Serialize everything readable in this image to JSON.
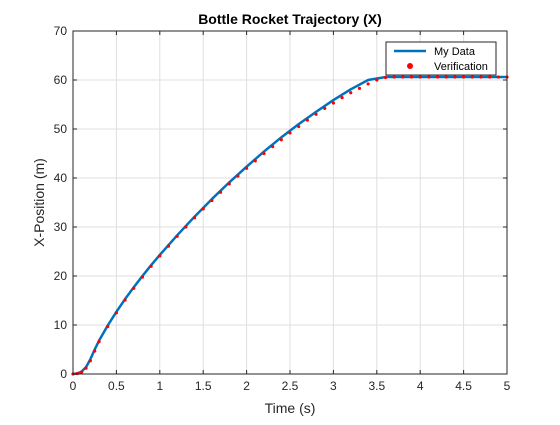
{
  "chart_data": {
    "type": "line",
    "title": "Bottle Rocket Trajectory (X)",
    "xlabel": "Time (s)",
    "ylabel": "X-Position (m)",
    "xlim": [
      0,
      5
    ],
    "ylim": [
      0,
      70
    ],
    "xticks": [
      0,
      0.5,
      1,
      1.5,
      2,
      2.5,
      3,
      3.5,
      4,
      4.5,
      5
    ],
    "xtick_labels": [
      "0",
      "0.5",
      "1",
      "1.5",
      "2",
      "2.5",
      "3",
      "3.5",
      "4",
      "4.5",
      "5"
    ],
    "yticks": [
      0,
      10,
      20,
      30,
      40,
      50,
      60,
      70
    ],
    "ytick_labels": [
      "0",
      "10",
      "20",
      "30",
      "40",
      "50",
      "60",
      "70"
    ],
    "grid": true,
    "legend_position": "top-right",
    "series": [
      {
        "name": "My Data",
        "style": "line",
        "color": "#0072BD",
        "x": [
          0,
          0.05,
          0.1,
          0.15,
          0.2,
          0.25,
          0.3,
          0.4,
          0.5,
          0.6,
          0.7,
          0.8,
          0.9,
          1.0,
          1.2,
          1.4,
          1.6,
          1.8,
          2.0,
          2.2,
          2.4,
          2.6,
          2.8,
          3.0,
          3.2,
          3.4,
          3.6,
          3.8,
          3.9,
          4.0,
          4.5,
          5.0
        ],
        "y": [
          0,
          0.1,
          0.5,
          1.4,
          3.0,
          5.0,
          6.8,
          9.9,
          12.7,
          15.3,
          17.7,
          20.0,
          22.2,
          24.3,
          28.3,
          32.1,
          35.7,
          39.1,
          42.3,
          45.4,
          48.3,
          51.0,
          53.5,
          55.9,
          58.1,
          60.0,
          60.6,
          60.6,
          60.6,
          60.6,
          60.6,
          60.6
        ]
      },
      {
        "name": "Verification",
        "style": "markers",
        "color": "#FF0000",
        "x": [
          0,
          0.05,
          0.1,
          0.15,
          0.2,
          0.25,
          0.3,
          0.4,
          0.5,
          0.6,
          0.7,
          0.8,
          0.9,
          1.0,
          1.1,
          1.2,
          1.3,
          1.4,
          1.5,
          1.6,
          1.7,
          1.8,
          1.9,
          2.0,
          2.1,
          2.2,
          2.3,
          2.4,
          2.5,
          2.6,
          2.7,
          2.8,
          2.9,
          3.0,
          3.1,
          3.2,
          3.3,
          3.4,
          3.5,
          3.6,
          3.7,
          3.8,
          3.9,
          4.0,
          4.1,
          4.2,
          4.3,
          4.4,
          4.5,
          4.6,
          4.7,
          4.8,
          4.9,
          5.0
        ],
        "y": [
          0,
          0.1,
          0.4,
          1.2,
          2.7,
          4.7,
          6.6,
          9.7,
          12.5,
          15.1,
          17.5,
          19.8,
          22.0,
          24.1,
          26.1,
          28.1,
          30.0,
          31.9,
          33.7,
          35.4,
          37.1,
          38.8,
          40.4,
          42.0,
          43.5,
          45.0,
          46.4,
          47.8,
          49.2,
          50.5,
          51.8,
          53.0,
          54.2,
          55.3,
          56.4,
          57.4,
          58.3,
          59.2,
          60.0,
          60.5,
          60.6,
          60.6,
          60.6,
          60.6,
          60.6,
          60.6,
          60.6,
          60.6,
          60.6,
          60.6,
          60.6,
          60.6,
          60.6,
          60.6
        ]
      }
    ]
  }
}
